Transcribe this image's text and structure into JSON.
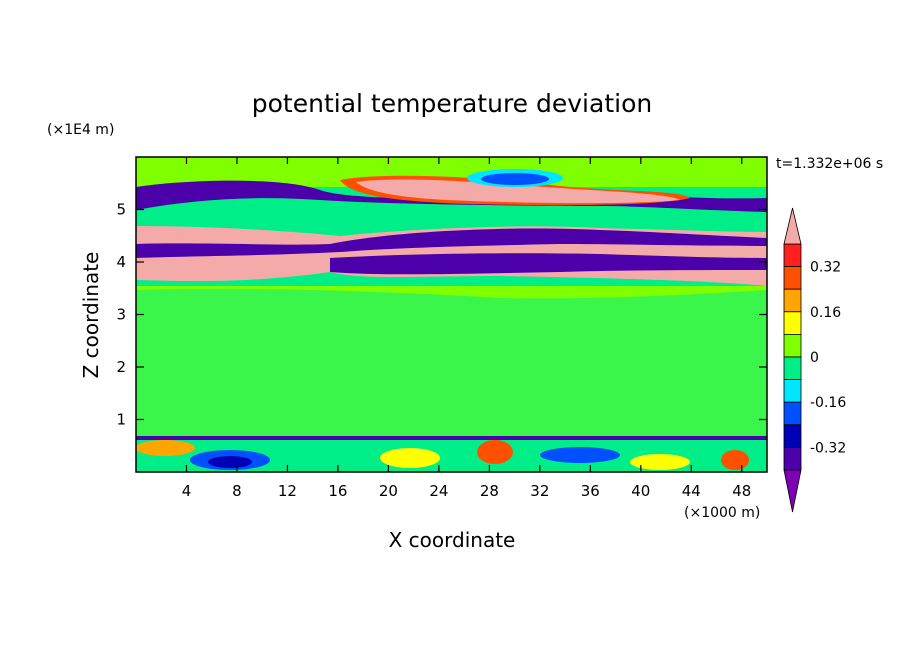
{
  "chart_data": {
    "type": "heatmap",
    "title": "potential temperature deviation",
    "time_label": "t=1.332e+06 s",
    "xlabel": "X coordinate",
    "ylabel": "Z coordinate",
    "x_unit": "(×1000 m)",
    "y_unit": "(×1E4 m)",
    "xlim": [
      0,
      50
    ],
    "ylim": [
      0,
      6
    ],
    "x_ticks": [
      "4",
      "8",
      "12",
      "16",
      "20",
      "24",
      "28",
      "32",
      "36",
      "40",
      "44",
      "48"
    ],
    "y_ticks": [
      "1",
      "2",
      "3",
      "4",
      "5"
    ],
    "colorbar": {
      "levels": [
        -0.48,
        -0.4,
        -0.32,
        -0.24,
        -0.16,
        -0.08,
        0,
        0.08,
        0.16,
        0.24,
        0.32,
        0.4,
        0.48
      ],
      "colors": [
        "#7d00b4",
        "#4b00aa",
        "#0000b4",
        "#0050ff",
        "#00e6ff",
        "#00ee88",
        "#80ff00",
        "#ffff00",
        "#ffa500",
        "#ff5000",
        "#ff2020",
        "#f5aaaa"
      ],
      "tick_labels": [
        "0.32",
        "0.16",
        "0",
        "-0.16",
        "-0.32"
      ],
      "tick_values": [
        0.32,
        0.16,
        0,
        -0.16,
        -0.32
      ]
    },
    "bands": [
      {
        "z_from": 5.8,
        "z_to": 6.0,
        "value": 0.05
      },
      {
        "z_from": 5.3,
        "z_to": 5.8,
        "value": 0.02
      },
      {
        "z_from": 5.0,
        "z_to": 5.3,
        "value": -0.45
      },
      {
        "z_from": 4.4,
        "z_to": 4.8,
        "value": 0.45
      },
      {
        "z_from": 4.3,
        "z_to": 4.6,
        "value": -0.45
      },
      {
        "z_from": 4.0,
        "z_to": 4.3,
        "value": 0.45
      },
      {
        "z_from": 3.7,
        "z_to": 4.1,
        "value": -0.45
      },
      {
        "z_from": 0.6,
        "z_to": 3.7,
        "value": 0.05
      },
      {
        "z_from": 0.0,
        "z_to": 0.6,
        "value": 0.0
      }
    ]
  }
}
